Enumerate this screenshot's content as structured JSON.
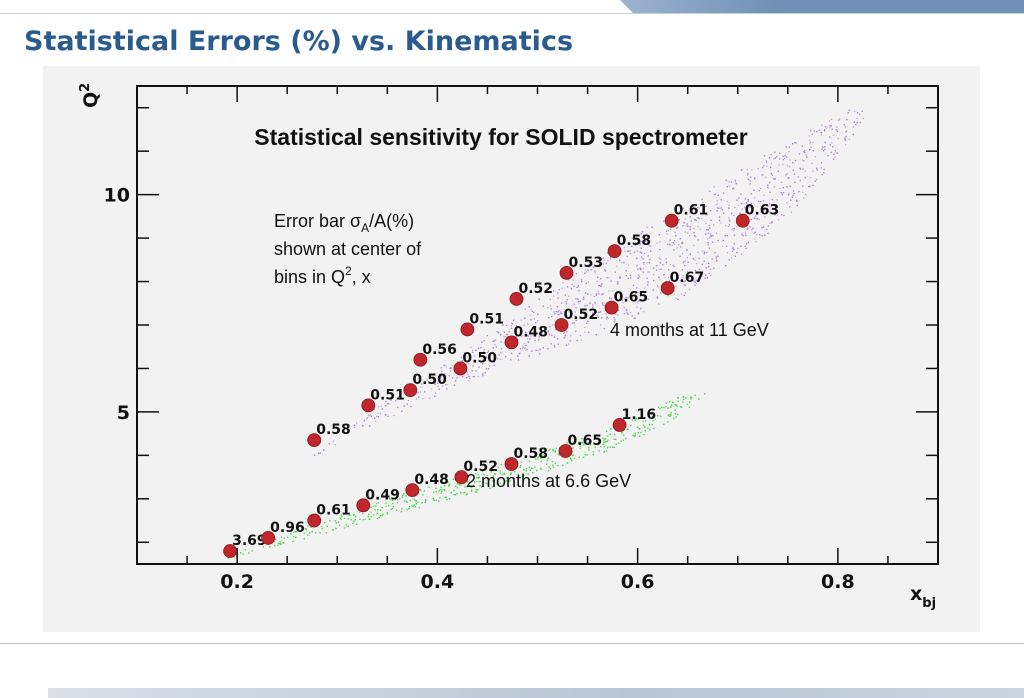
{
  "slide": {
    "title": "Statistical Errors (%) vs. Kinematics"
  },
  "chart_data": {
    "type": "scatter",
    "title": "Statistical sensitivity for SOLID spectrometer",
    "xlabel": "x",
    "xlabel_sub": "bj",
    "ylabel": "Q",
    "ylabel_sup": "2",
    "xlim": [
      0.1,
      0.9
    ],
    "ylim": [
      1.5,
      12.5
    ],
    "x_ticks": [
      0.2,
      0.4,
      0.6,
      0.8
    ],
    "x_tick_labels": [
      "0.2",
      "0.4",
      "0.6",
      "0.8"
    ],
    "y_ticks": [
      5,
      10
    ],
    "y_tick_labels": [
      "5",
      "10"
    ],
    "grid": false,
    "colors": {
      "marker": "#c0272d",
      "band_11gev": "#b07fd9",
      "band_6gev": "#4fd84f"
    },
    "annotation": {
      "line1_pre": "Error bar σ",
      "line1_sub": "A",
      "line1_post": "/A(%)",
      "line2": "shown at center of",
      "line3_pre": "bins in Q",
      "line3_sup": "2",
      "line3_post": ", x"
    },
    "series": [
      {
        "name": "4 months at 11 GeV",
        "points": [
          {
            "x": 0.277,
            "y": 4.35,
            "label": "0.58"
          },
          {
            "x": 0.331,
            "y": 5.15,
            "label": "0.51"
          },
          {
            "x": 0.373,
            "y": 5.5,
            "label": "0.50"
          },
          {
            "x": 0.383,
            "y": 6.2,
            "label": "0.56"
          },
          {
            "x": 0.423,
            "y": 6.0,
            "label": "0.50"
          },
          {
            "x": 0.43,
            "y": 6.9,
            "label": "0.51"
          },
          {
            "x": 0.474,
            "y": 6.6,
            "label": "0.48"
          },
          {
            "x": 0.479,
            "y": 7.6,
            "label": "0.52"
          },
          {
            "x": 0.524,
            "y": 7.0,
            "label": "0.52"
          },
          {
            "x": 0.529,
            "y": 8.2,
            "label": "0.53"
          },
          {
            "x": 0.574,
            "y": 7.4,
            "label": "0.65"
          },
          {
            "x": 0.577,
            "y": 8.7,
            "label": "0.58"
          },
          {
            "x": 0.63,
            "y": 7.85,
            "label": "0.67"
          },
          {
            "x": 0.634,
            "y": 9.4,
            "label": "0.61"
          },
          {
            "x": 0.705,
            "y": 9.4,
            "label": "0.63"
          }
        ]
      },
      {
        "name": "2 months at 6.6 GeV",
        "points": [
          {
            "x": 0.193,
            "y": 1.8,
            "label": "3.69"
          },
          {
            "x": 0.231,
            "y": 2.1,
            "label": "0.96"
          },
          {
            "x": 0.277,
            "y": 2.5,
            "label": "0.61"
          },
          {
            "x": 0.326,
            "y": 2.85,
            "label": "0.49"
          },
          {
            "x": 0.375,
            "y": 3.2,
            "label": "0.48"
          },
          {
            "x": 0.424,
            "y": 3.5,
            "label": "0.52"
          },
          {
            "x": 0.474,
            "y": 3.8,
            "label": "0.58"
          },
          {
            "x": 0.528,
            "y": 4.1,
            "label": "0.65"
          },
          {
            "x": 0.582,
            "y": 4.7,
            "label": "1.16"
          }
        ]
      }
    ]
  }
}
